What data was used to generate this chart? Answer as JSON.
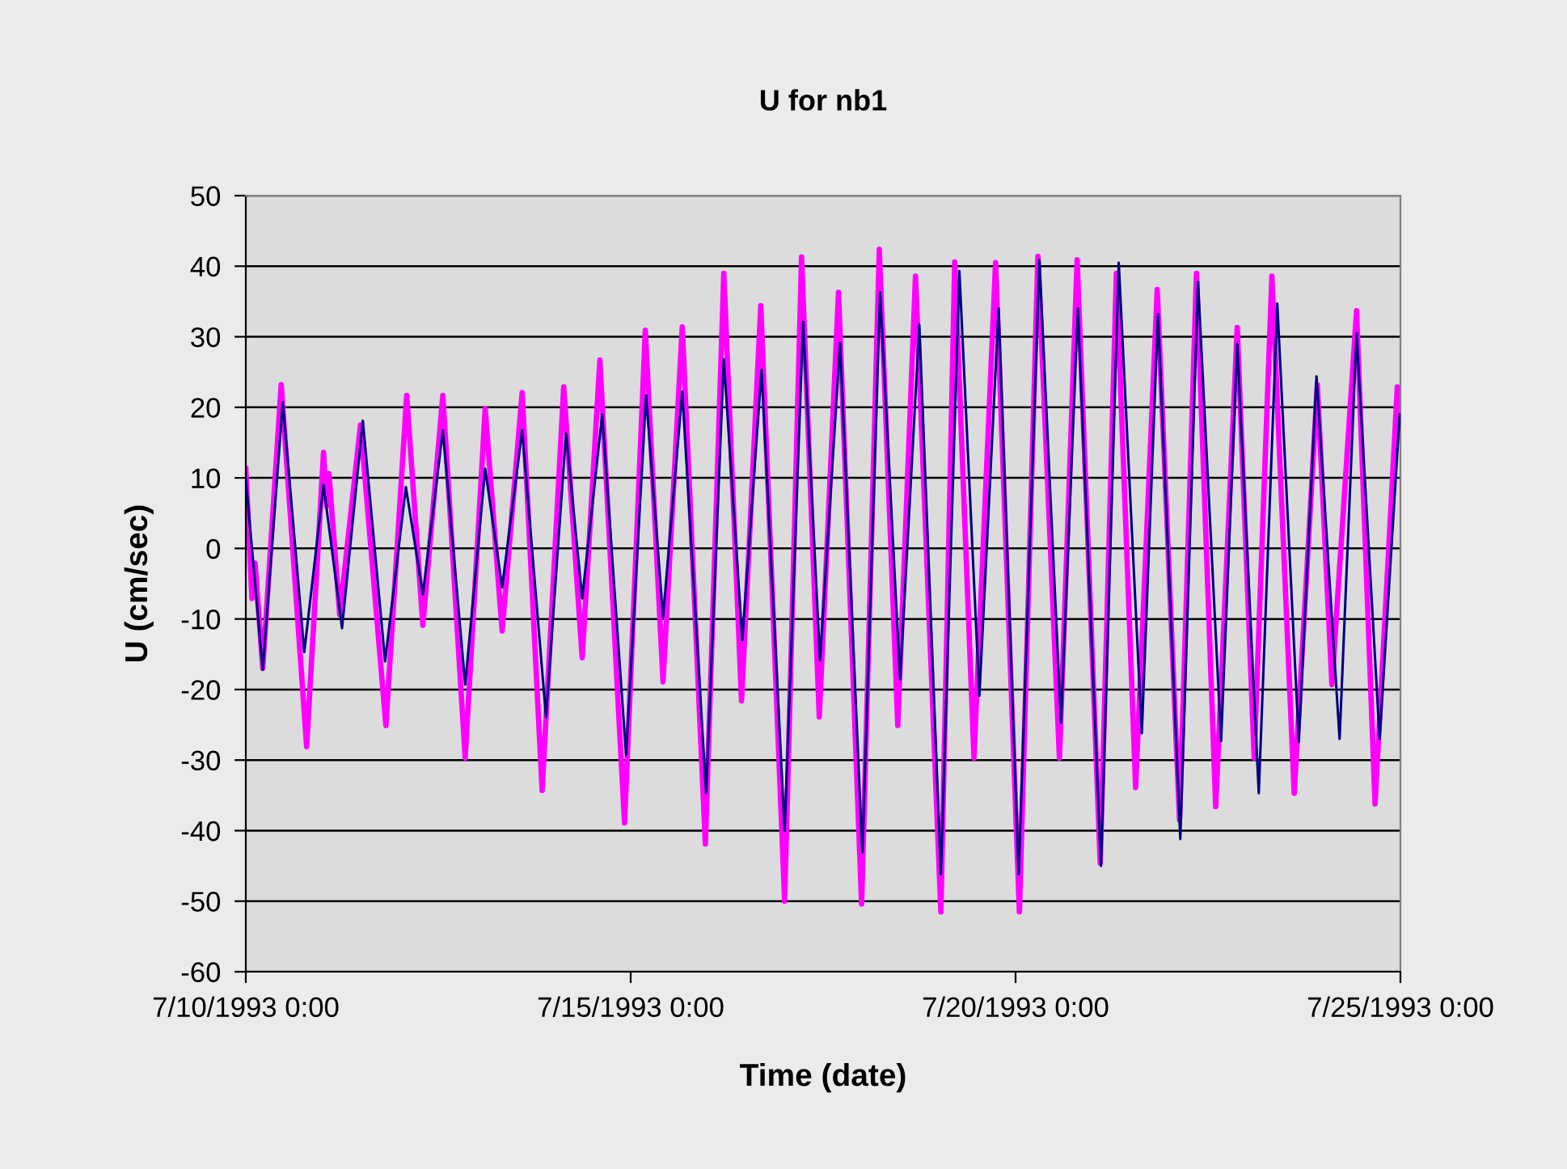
{
  "chart_data": {
    "type": "line",
    "title": "U for nb1",
    "xlabel": "Time (date)",
    "ylabel": "U (cm/sec)",
    "xlim": [
      "1993-07-10T00:00",
      "1993-07-25T00:00"
    ],
    "xticks": [
      {
        "value": "1993-07-10T00:00",
        "label": "7/10/1993 0:00"
      },
      {
        "value": "1993-07-15T00:00",
        "label": "7/15/1993 0:00"
      },
      {
        "value": "1993-07-20T00:00",
        "label": "7/20/1993 0:00"
      },
      {
        "value": "1993-07-25T00:00",
        "label": "7/25/1993 0:00"
      }
    ],
    "ylim": [
      -60,
      50
    ],
    "yticks": [
      -60,
      -50,
      -40,
      -30,
      -20,
      -10,
      0,
      10,
      20,
      30,
      40,
      50
    ],
    "grid": "y",
    "legend": false,
    "marker": "none",
    "line_style": "solid",
    "series": [
      {
        "color": "#ff00ff",
        "x": [
          "1993-07-10T00:00",
          "1993-07-10T01:55",
          "1993-07-10T02:53",
          "1993-07-10T05:17",
          "1993-07-10T11:02",
          "1993-07-10T18:58",
          "1993-07-11T00:14",
          "1993-07-11T01:12",
          "1993-07-11T01:55",
          "1993-07-11T05:17",
          "1993-07-11T11:46",
          "1993-07-11T19:41",
          "1993-07-12T02:10",
          "1993-07-12T07:12",
          "1993-07-12T13:26",
          "1993-07-12T20:24",
          "1993-07-13T02:38",
          "1993-07-13T07:55",
          "1993-07-13T14:10",
          "1993-07-13T20:24",
          "1993-07-14T03:07",
          "1993-07-14T08:53",
          "1993-07-14T14:24",
          "1993-07-14T22:05",
          "1993-07-15T04:34",
          "1993-07-15T10:05",
          "1993-07-15T16:05",
          "1993-07-15T23:17",
          "1993-07-16T05:02",
          "1993-07-16T10:34",
          "1993-07-16T16:34",
          "1993-07-17T00:00",
          "1993-07-17T05:17",
          "1993-07-17T10:48",
          "1993-07-17T16:48",
          "1993-07-18T00:00",
          "1993-07-18T05:31",
          "1993-07-18T11:17",
          "1993-07-18T16:48",
          "1993-07-19T00:43",
          "1993-07-19T05:02",
          "1993-07-19T11:02",
          "1993-07-19T17:46",
          "1993-07-20T01:12",
          "1993-07-20T06:58",
          "1993-07-20T13:41",
          "1993-07-20T19:12",
          "1993-07-21T02:24",
          "1993-07-21T07:26",
          "1993-07-21T13:26",
          "1993-07-21T20:10",
          "1993-07-22T03:07",
          "1993-07-22T08:24",
          "1993-07-22T14:24",
          "1993-07-22T21:07",
          "1993-07-23T02:24",
          "1993-07-23T07:55",
          "1993-07-23T14:53",
          "1993-07-23T22:05",
          "1993-07-24T02:38",
          "1993-07-24T10:19",
          "1993-07-24T16:05",
          "1993-07-24T23:02",
          "1993-07-24T23:46"
        ],
        "values": [
          11.3,
          -7.1,
          -2.1,
          -17.0,
          23.2,
          -28.1,
          13.6,
          6,
          10.6,
          -9.4,
          17.5,
          -25.1,
          21.7,
          -10.9,
          21.7,
          -29.7,
          19.8,
          -11.7,
          22.1,
          -34.3,
          22.9,
          -15.5,
          26.7,
          -38.9,
          30.9,
          -18.9,
          31.4,
          -41.9,
          39.0,
          -21.6,
          34.4,
          -50.0,
          41.3,
          -23.9,
          36.3,
          -50.4,
          42.4,
          -25.1,
          38.6,
          -51.5,
          40.6,
          -29.7,
          40.5,
          -51.5,
          41.4,
          -29.7,
          40.9,
          -44.6,
          39.0,
          -33.9,
          36.7,
          -38.5,
          39.0,
          -36.6,
          31.3,
          -29.7,
          38.6,
          -34.7,
          23.2,
          -19.3,
          33.7,
          -36.2,
          22.9,
          17.5
        ]
      },
      {
        "color": "#000080",
        "x": [
          "1993-07-10T00:00",
          "1993-07-10T05:17",
          "1993-07-10T11:31",
          "1993-07-10T18:14",
          "1993-07-11T00:14",
          "1993-07-11T06:00",
          "1993-07-11T12:29",
          "1993-07-11T19:26",
          "1993-07-12T01:55",
          "1993-07-12T07:12",
          "1993-07-12T13:26",
          "1993-07-12T20:24",
          "1993-07-13T02:38",
          "1993-07-13T07:55",
          "1993-07-13T14:10",
          "1993-07-13T21:36",
          "1993-07-14T03:50",
          "1993-07-14T08:53",
          "1993-07-14T15:07",
          "1993-07-14T22:34",
          "1993-07-15T04:48",
          "1993-07-15T10:05",
          "1993-07-15T16:05",
          "1993-07-15T23:31",
          "1993-07-16T05:02",
          "1993-07-16T10:48",
          "1993-07-16T16:48",
          "1993-07-17T00:00",
          "1993-07-17T05:46",
          "1993-07-17T11:02",
          "1993-07-17T17:17",
          "1993-07-18T00:14",
          "1993-07-18T05:46",
          "1993-07-18T12:00",
          "1993-07-18T18:00",
          "1993-07-19T00:43",
          "1993-07-19T06:29",
          "1993-07-19T12:43",
          "1993-07-19T18:43",
          "1993-07-20T00:58",
          "1993-07-20T07:26",
          "1993-07-20T14:10",
          "1993-07-20T19:26",
          "1993-07-21T02:38",
          "1993-07-21T08:10",
          "1993-07-21T15:22",
          "1993-07-21T20:24",
          "1993-07-22T03:22",
          "1993-07-22T08:53",
          "1993-07-22T16:05",
          "1993-07-22T21:07",
          "1993-07-23T03:50",
          "1993-07-23T09:36",
          "1993-07-23T16:19",
          "1993-07-23T21:50",
          "1993-07-24T05:02",
          "1993-07-24T10:19",
          "1993-07-24T17:31",
          "1993-07-24T23:46"
        ],
        "values": [
          9.8,
          -17.2,
          20.7,
          -14.7,
          9.0,
          -11.3,
          18.1,
          -16.0,
          8.7,
          -6.5,
          16.7,
          -19.3,
          11.3,
          -5.5,
          16.7,
          -23.9,
          16.3,
          -7.1,
          19.0,
          -29.3,
          21.7,
          -9.7,
          22.2,
          -34.7,
          26.8,
          -13.0,
          25.3,
          -40.0,
          32.1,
          -15.9,
          29.1,
          -43.1,
          36.3,
          -18.6,
          31.7,
          -46.2,
          39.3,
          -20.9,
          34.0,
          -46.2,
          40.9,
          -24.7,
          34.0,
          -45.0,
          40.5,
          -26.2,
          33.2,
          -41.2,
          37.8,
          -27.3,
          29.0,
          -34.7,
          34.7,
          -27.4,
          24.4,
          -27.0,
          30.5,
          -27.0,
          19.0
        ]
      }
    ]
  }
}
